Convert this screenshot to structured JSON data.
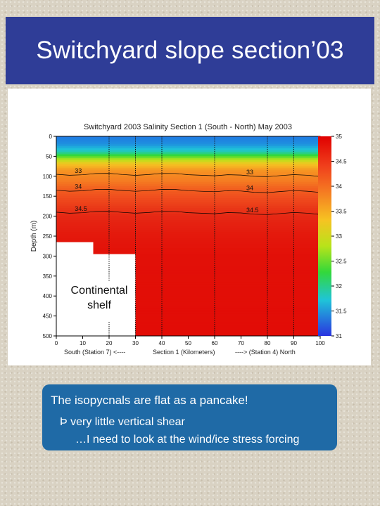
{
  "slide": {
    "title": "Switchyard slope section’03",
    "callout": {
      "line1": "Continental",
      "line2": "shelf"
    },
    "textbox": {
      "main": "The isopycnals are flat as a pancake!",
      "bullet1": "Þ very little vertical shear",
      "bullet2": "…I need to look at the wind/ice stress forcing"
    }
  },
  "chart_data": {
    "type": "heatmap",
    "title": "Switchyard 2003 Salinity Section 1 (South - North) May 2003",
    "xlabel": "Section 1 (Kilometers)",
    "xlabel_left": "South (Station 7) <----",
    "xlabel_right": "----> (Station 4) North",
    "ylabel": "Depth (m)",
    "xlim": [
      0,
      100
    ],
    "ylim": [
      0,
      500
    ],
    "x_ticks": [
      "0",
      "10",
      "20",
      "30",
      "40",
      "50",
      "60",
      "70",
      "80",
      "90",
      "100"
    ],
    "y_ticks": [
      "0",
      "50",
      "100",
      "150",
      "200",
      "250",
      "300",
      "350",
      "400",
      "450",
      "500"
    ],
    "colorbar": {
      "range": [
        31,
        35
      ],
      "ticks": [
        "35",
        "34.5",
        "34",
        "33.5",
        "33",
        "32.5",
        "32",
        "31.5",
        "31"
      ]
    },
    "salinity_profile": [
      {
        "depth": 0,
        "salinity": 31.4
      },
      {
        "depth": 20,
        "salinity": 31.5
      },
      {
        "depth": 40,
        "salinity": 31.8
      },
      {
        "depth": 55,
        "salinity": 32.2
      },
      {
        "depth": 70,
        "salinity": 32.6
      },
      {
        "depth": 85,
        "salinity": 33.0
      },
      {
        "depth": 100,
        "salinity": 33.3
      },
      {
        "depth": 130,
        "salinity": 33.8
      },
      {
        "depth": 170,
        "salinity": 34.2
      },
      {
        "depth": 200,
        "salinity": 34.5
      },
      {
        "depth": 250,
        "salinity": 34.7
      },
      {
        "depth": 300,
        "salinity": 34.8
      },
      {
        "depth": 500,
        "salinity": 34.85
      }
    ],
    "contours": [
      {
        "label": "33",
        "label2": "33",
        "depth": 95
      },
      {
        "label": "34",
        "label2": "34",
        "depth": 135
      },
      {
        "label": "34.5",
        "label2": "34.5",
        "depth": 190
      }
    ],
    "stations_km": [
      0,
      20,
      30,
      40,
      60,
      80,
      90
    ],
    "shelf": [
      {
        "x_from": 0,
        "x_to": 14,
        "depth": 265
      },
      {
        "x_from": 14,
        "x_to": 30,
        "depth": 295
      }
    ]
  },
  "colors": {
    "title_bar": "#2f3d97",
    "text_box": "#1f6aa6"
  }
}
